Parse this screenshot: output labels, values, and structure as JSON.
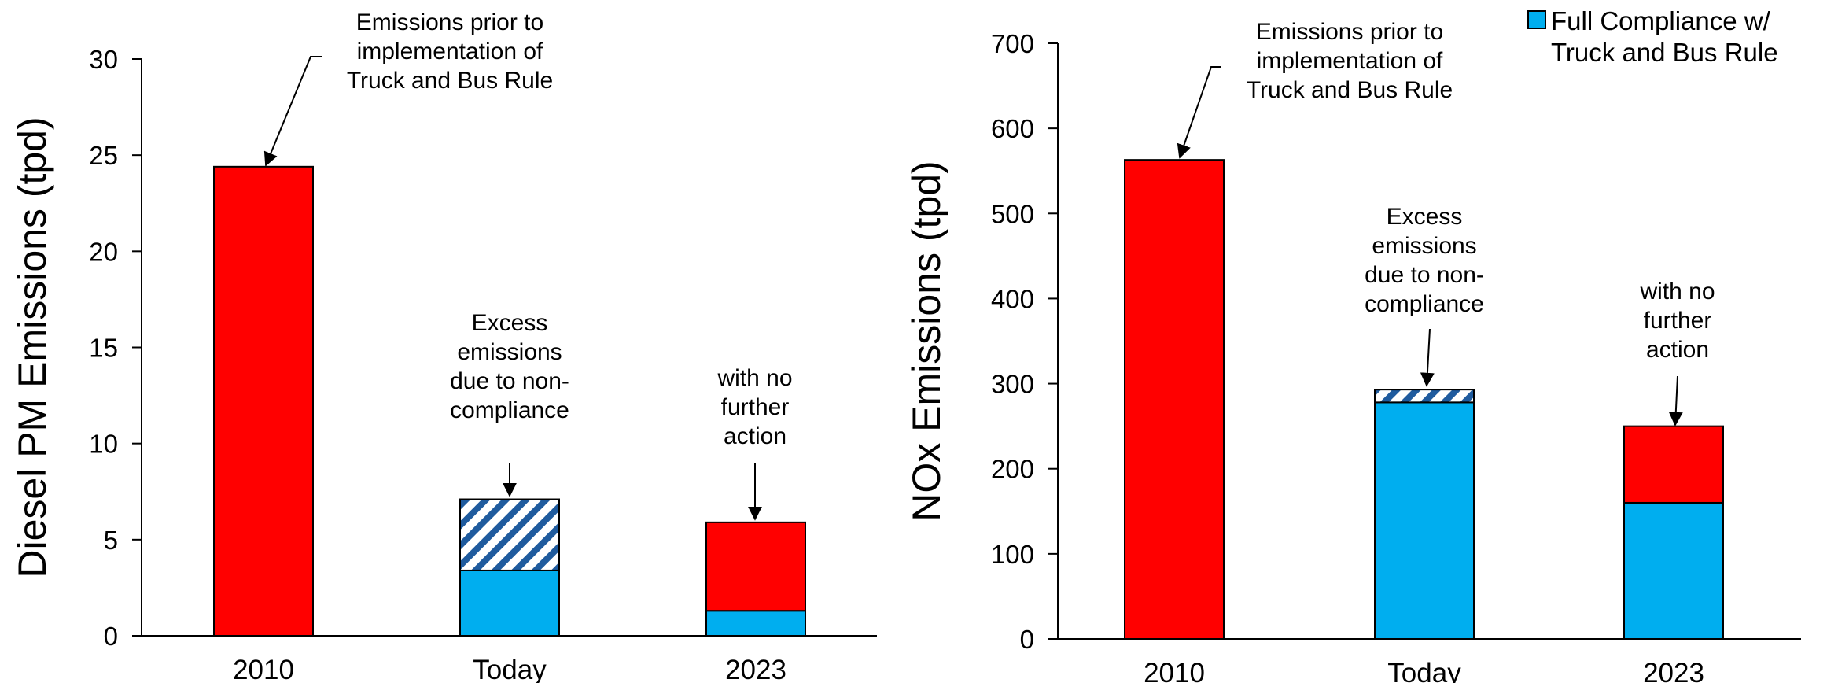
{
  "chart_data": [
    {
      "type": "bar",
      "stacked": true,
      "ylabel": "Diesel PM Emissions (tpd)",
      "ylim": [
        0,
        30
      ],
      "yticks": [
        0,
        5,
        10,
        15,
        20,
        25,
        30
      ],
      "categories": [
        "2010",
        "Today",
        "2023"
      ],
      "segments": [
        [
          {
            "value": 24.4,
            "color": "#ff0000",
            "pattern": "solid"
          }
        ],
        [
          {
            "value": 3.4,
            "color": "#00aeef",
            "pattern": "solid"
          },
          {
            "value": 3.7,
            "color": "#1f5b9e",
            "pattern": "hatch"
          }
        ],
        [
          {
            "value": 1.3,
            "color": "#00aeef",
            "pattern": "solid"
          },
          {
            "value": 4.6,
            "color": "#ff0000",
            "pattern": "solid"
          }
        ]
      ],
      "annotations": [
        {
          "lines": [
            "Emissions prior to",
            "implementation of",
            "Truck and Bus Rule"
          ],
          "category": 0
        },
        {
          "lines": [
            "Excess",
            "emissions",
            "due to non-",
            "compliance"
          ],
          "category": 1
        },
        {
          "lines": [
            "with no",
            "further",
            "action"
          ],
          "category": 2
        }
      ]
    },
    {
      "type": "bar",
      "stacked": true,
      "ylabel": "NOx Emissions (tpd)",
      "ylim": [
        0,
        700
      ],
      "yticks": [
        0,
        100,
        200,
        300,
        400,
        500,
        600,
        700
      ],
      "categories": [
        "2010",
        "Today",
        "2023"
      ],
      "segments": [
        [
          {
            "value": 563,
            "color": "#ff0000",
            "pattern": "solid"
          }
        ],
        [
          {
            "value": 278,
            "color": "#00aeef",
            "pattern": "solid"
          },
          {
            "value": 15,
            "color": "#1f5b9e",
            "pattern": "hatch"
          }
        ],
        [
          {
            "value": 160,
            "color": "#00aeef",
            "pattern": "solid"
          },
          {
            "value": 90,
            "color": "#ff0000",
            "pattern": "solid"
          }
        ]
      ],
      "annotations": [
        {
          "lines": [
            "Emissions prior to",
            "implementation of",
            "Truck and Bus Rule"
          ],
          "category": 0
        },
        {
          "lines": [
            "Excess",
            "emissions",
            "due to non-",
            "compliance"
          ],
          "category": 1
        },
        {
          "lines": [
            "with no",
            "further",
            "action"
          ],
          "category": 2
        }
      ]
    }
  ],
  "legend": {
    "lines": [
      "Full Compliance w/",
      "Truck and Bus Rule"
    ],
    "color": "#00aeef",
    "placement": "top-right"
  }
}
